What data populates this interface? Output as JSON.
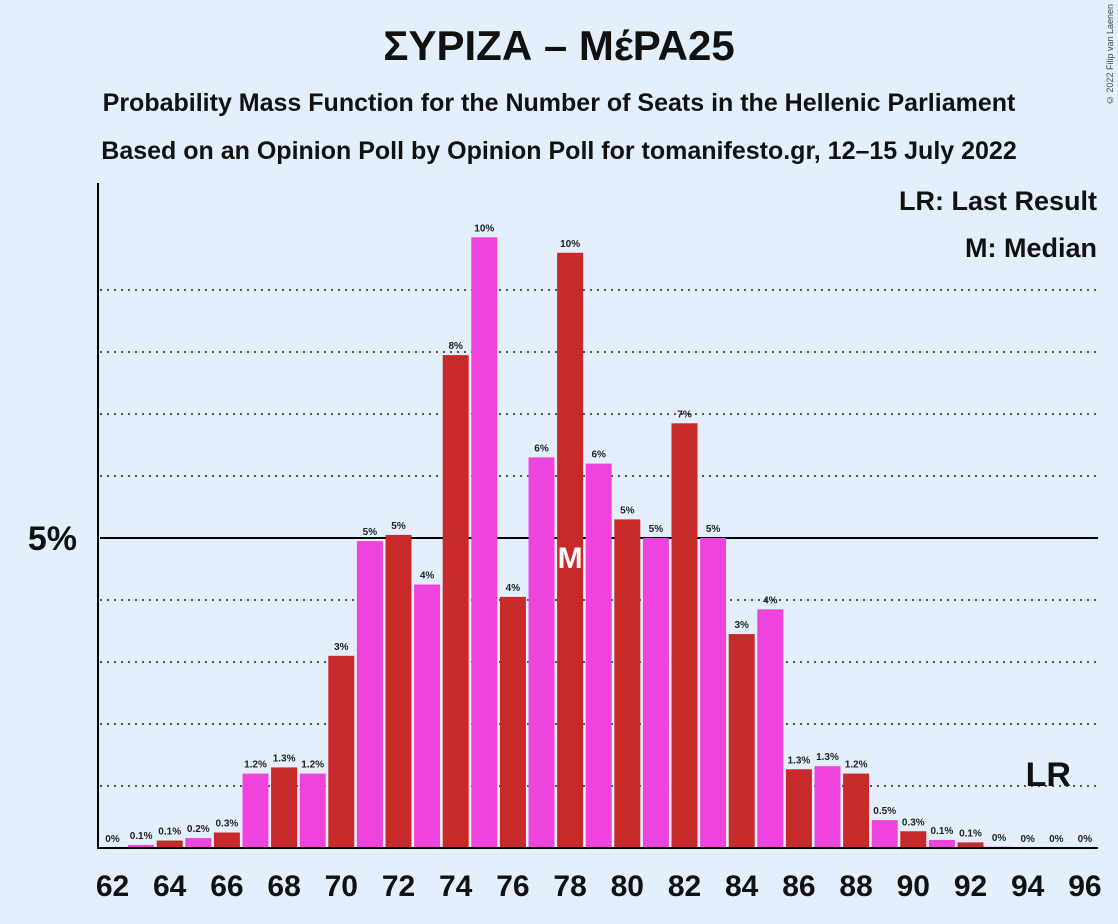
{
  "title": "ΣΥΡΙΖΑ – ΜέΡΑ25",
  "subtitle1": "Probability Mass Function for the Number of Seats in the Hellenic Parliament",
  "subtitle2": "Based on an Opinion Poll by Opinion Poll for tomanifesto.gr, 12–15 July 2022",
  "copyright": "© 2022 Filip van Laenen",
  "legend": {
    "lr": "LR: Last Result",
    "m": "M: Median"
  },
  "markers": {
    "median_label": "M",
    "median_seat": 78,
    "lr_label": "LR",
    "lr_seat": 95
  },
  "colors": {
    "red": "#c8292b",
    "magenta": "#ee44dd",
    "background": "#e3f0fc"
  },
  "chart_data": {
    "type": "bar",
    "xlabel": "",
    "ylabel": "",
    "ylim": [
      0,
      10.7
    ],
    "y_major_tick": {
      "value": 5,
      "label": "5%"
    },
    "gridlines": [
      1,
      2,
      3,
      4,
      6,
      7,
      8,
      9
    ],
    "x_tick_labels": [
      "62",
      "64",
      "66",
      "68",
      "70",
      "72",
      "74",
      "76",
      "78",
      "80",
      "82",
      "84",
      "86",
      "88",
      "90",
      "92",
      "94",
      "96"
    ],
    "categories": [
      62,
      63,
      64,
      65,
      66,
      67,
      68,
      69,
      70,
      71,
      72,
      73,
      74,
      75,
      76,
      77,
      78,
      79,
      80,
      81,
      82,
      83,
      84,
      85,
      86,
      87,
      88,
      89,
      90,
      91,
      92,
      93,
      94,
      95,
      96
    ],
    "values": [
      0.0,
      0.05,
      0.12,
      0.16,
      0.25,
      1.2,
      1.3,
      1.2,
      3.1,
      4.95,
      5.05,
      4.25,
      7.95,
      9.85,
      4.05,
      6.3,
      9.6,
      6.2,
      5.3,
      5.0,
      6.85,
      5.0,
      3.45,
      3.85,
      1.27,
      1.32,
      1.2,
      0.45,
      0.27,
      0.13,
      0.09,
      0.02,
      0.0,
      0.0,
      0.0
    ],
    "value_labels": [
      "0%",
      "0.1%",
      "0.1%",
      "0.2%",
      "0.3%",
      "1.2%",
      "1.3%",
      "1.2%",
      "3%",
      "5%",
      "5%",
      "4%",
      "8%",
      "10%",
      "4%",
      "6%",
      "10%",
      "6%",
      "5%",
      "5%",
      "7%",
      "5%",
      "3%",
      "4%",
      "1.3%",
      "1.3%",
      "1.2%",
      "0.5%",
      "0.3%",
      "0.1%",
      "0.1%",
      "0%",
      "0%",
      "0%",
      "0%"
    ]
  }
}
